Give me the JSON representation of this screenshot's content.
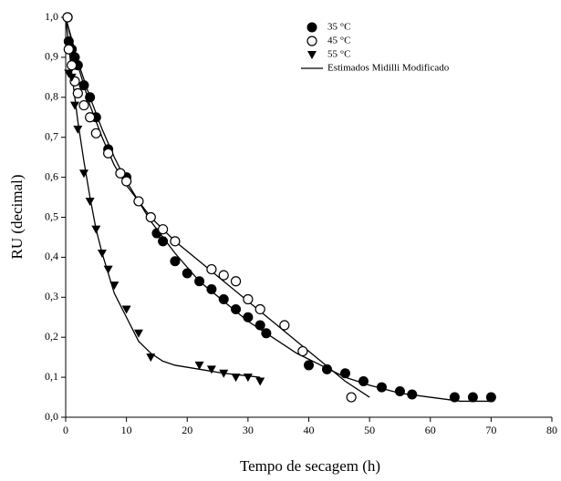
{
  "chart_data": {
    "type": "scatter",
    "x_label": "Tempo de secagem (h)",
    "y_label": "RU (decimal)",
    "xlim": [
      0,
      80
    ],
    "xticks": [
      0,
      10,
      20,
      30,
      40,
      50,
      60,
      70,
      80
    ],
    "ylim": [
      0,
      1
    ],
    "yticks": [
      {
        "value": 0,
        "label": "0,0"
      },
      {
        "value": 0.1,
        "label": "0,1"
      },
      {
        "value": 0.2,
        "label": "0,2"
      },
      {
        "value": 0.3,
        "label": "0,3"
      },
      {
        "value": 0.4,
        "label": "0,4"
      },
      {
        "value": 0.5,
        "label": "0,5"
      },
      {
        "value": 0.6,
        "label": "0,6"
      },
      {
        "value": 0.7,
        "label": "0,7"
      },
      {
        "value": 0.8,
        "label": "0,8"
      },
      {
        "value": 0.9,
        "label": "0,9"
      },
      {
        "value": 1,
        "label": "1,0"
      }
    ],
    "series": [
      {
        "name": "35 °C",
        "marker": "filled-circle",
        "color": "#000000",
        "x": [
          0.33,
          0.5,
          1,
          1.5,
          2,
          3,
          4,
          5,
          7,
          9,
          10,
          15,
          16,
          18,
          20,
          22,
          24,
          26,
          28,
          30,
          32,
          33,
          40,
          43,
          46,
          49,
          52,
          55,
          57,
          64,
          67,
          70
        ],
        "values": [
          1.0,
          0.94,
          0.92,
          0.9,
          0.88,
          0.83,
          0.8,
          0.75,
          0.67,
          0.61,
          0.6,
          0.46,
          0.44,
          0.39,
          0.36,
          0.34,
          0.32,
          0.295,
          0.27,
          0.25,
          0.23,
          0.21,
          0.13,
          0.12,
          0.11,
          0.09,
          0.075,
          0.065,
          0.057,
          0.05,
          0.05,
          0.05
        ]
      },
      {
        "name": "45 °C",
        "marker": "open-circle",
        "color": "#000000",
        "x": [
          0.3,
          0.5,
          1,
          1.5,
          2,
          3,
          4,
          5,
          7,
          9,
          10,
          12,
          14,
          16,
          18,
          24,
          26,
          28,
          30,
          32,
          36,
          39,
          47
        ],
        "values": [
          1.0,
          0.92,
          0.88,
          0.84,
          0.81,
          0.78,
          0.75,
          0.71,
          0.66,
          0.61,
          0.59,
          0.54,
          0.5,
          0.47,
          0.44,
          0.37,
          0.355,
          0.34,
          0.295,
          0.27,
          0.23,
          0.165,
          0.05
        ]
      },
      {
        "name": "55 °C",
        "marker": "triangle",
        "color": "#000000",
        "x": [
          0.5,
          1,
          1.5,
          2,
          3,
          4,
          5,
          6,
          7,
          8,
          10,
          12,
          14,
          22,
          24,
          26,
          28,
          30,
          32
        ],
        "values": [
          0.86,
          0.85,
          0.78,
          0.72,
          0.61,
          0.54,
          0.47,
          0.41,
          0.37,
          0.33,
          0.27,
          0.21,
          0.15,
          0.13,
          0.12,
          0.11,
          0.1,
          0.1,
          0.09
        ]
      }
    ],
    "fits": {
      "name": "Estimados Midilli Modificado",
      "color": "#000000",
      "lines": [
        {
          "x": [
            0,
            2,
            4,
            6,
            8,
            10,
            14,
            18,
            22,
            26,
            30,
            34,
            38,
            42,
            46,
            50,
            55,
            60,
            65,
            70
          ],
          "values": [
            1.0,
            0.89,
            0.8,
            0.72,
            0.65,
            0.59,
            0.49,
            0.41,
            0.34,
            0.29,
            0.24,
            0.2,
            0.16,
            0.13,
            0.1,
            0.08,
            0.06,
            0.05,
            0.04,
            0.04
          ]
        },
        {
          "x": [
            0,
            2,
            4,
            6,
            8,
            10,
            14,
            18,
            22,
            26,
            30,
            34,
            38,
            42,
            46,
            50
          ],
          "values": [
            1.0,
            0.88,
            0.78,
            0.7,
            0.63,
            0.58,
            0.5,
            0.44,
            0.39,
            0.34,
            0.29,
            0.24,
            0.19,
            0.14,
            0.09,
            0.05
          ]
        },
        {
          "x": [
            0,
            1,
            2,
            3,
            4,
            5,
            6,
            7,
            8,
            10,
            12,
            14,
            16,
            18,
            22,
            26,
            32
          ],
          "values": [
            1.0,
            0.86,
            0.74,
            0.64,
            0.55,
            0.47,
            0.41,
            0.36,
            0.31,
            0.25,
            0.19,
            0.16,
            0.14,
            0.13,
            0.12,
            0.11,
            0.1
          ]
        }
      ]
    },
    "legend": "upper-center"
  }
}
